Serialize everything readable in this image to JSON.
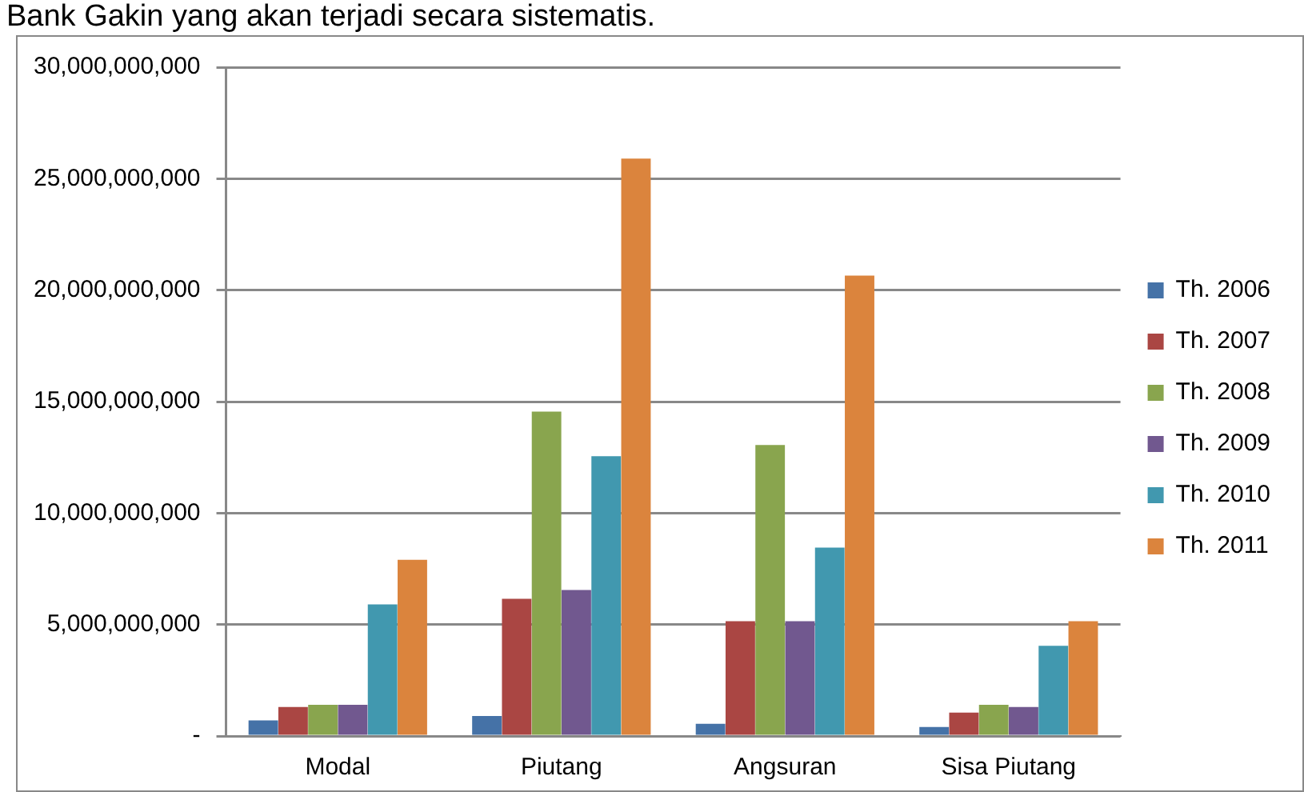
{
  "chart_data": {
    "type": "bar",
    "annotations": [
      "Bank Gakin yang akan terjadi secara sistematis."
    ],
    "categories": [
      "Modal",
      "Piutang",
      "Angsuran",
      "Sisa Piutang"
    ],
    "series": [
      {
        "name": "Th. 2006",
        "color": "#4572a7",
        "values": [
          700000000,
          900000000,
          550000000,
          400000000
        ]
      },
      {
        "name": "Th. 2007",
        "color": "#aa4643",
        "values": [
          1300000000,
          6150000000,
          5150000000,
          1050000000
        ]
      },
      {
        "name": "Th. 2008",
        "color": "#89a54e",
        "values": [
          1400000000,
          14550000000,
          13050000000,
          1400000000
        ]
      },
      {
        "name": "Th. 2009",
        "color": "#71588f",
        "values": [
          1400000000,
          6550000000,
          5150000000,
          1300000000
        ]
      },
      {
        "name": "Th. 2010",
        "color": "#4198af",
        "values": [
          5900000000,
          12550000000,
          8450000000,
          4050000000
        ]
      },
      {
        "name": "Th. 2011",
        "color": "#db843d",
        "values": [
          7900000000,
          25900000000,
          20650000000,
          5150000000
        ]
      }
    ],
    "ylim": [
      0,
      30000000000
    ],
    "yticks": [
      {
        "value": 0,
        "label": "-"
      },
      {
        "value": 5000000000,
        "label": "5,000,000,000"
      },
      {
        "value": 10000000000,
        "label": "10,000,000,000"
      },
      {
        "value": 15000000000,
        "label": "15,000,000,000"
      },
      {
        "value": 20000000000,
        "label": "20,000,000,000"
      },
      {
        "value": 25000000000,
        "label": "25,000,000,000"
      },
      {
        "value": 30000000000,
        "label": "30,000,000,000"
      }
    ],
    "grid": "y",
    "legend": "right"
  }
}
